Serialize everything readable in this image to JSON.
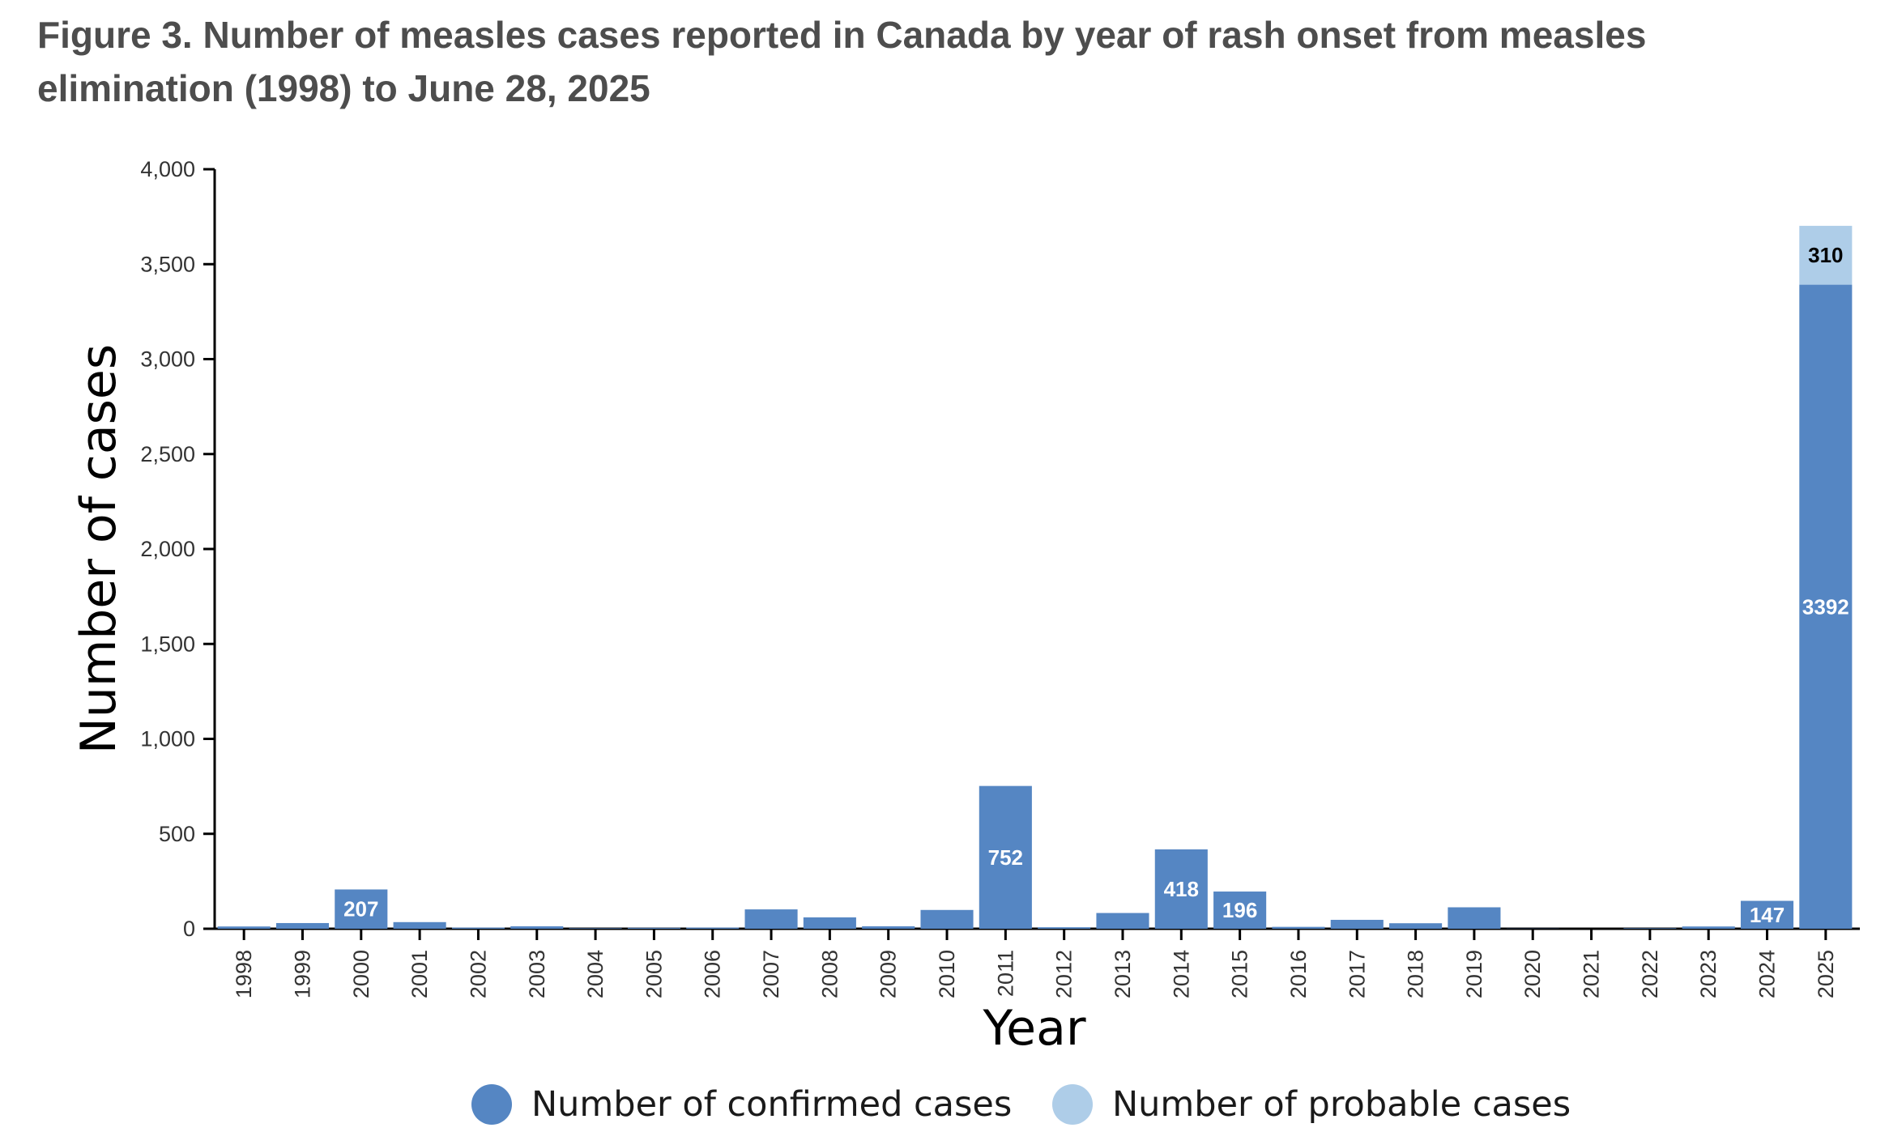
{
  "title": "Figure 3. Number of measles cases reported in Canada by year of rash onset from measles elimination (1998) to June 28, 2025",
  "chart_data": {
    "type": "bar",
    "stacked": true,
    "title": "Figure 3. Number of measles cases reported in Canada by year of rash onset from measles elimination (1998) to June 28, 2025",
    "xlabel": "Year",
    "ylabel": "Number of cases",
    "ylim": [
      0,
      4000
    ],
    "yticks": [
      0,
      500,
      1000,
      1500,
      2000,
      2500,
      3000,
      3500,
      4000
    ],
    "ytick_labels": [
      "0",
      "500",
      "1,000",
      "1,500",
      "2,000",
      "2,500",
      "3,000",
      "3,500",
      "4,000"
    ],
    "categories": [
      "1998",
      "1999",
      "2000",
      "2001",
      "2002",
      "2003",
      "2004",
      "2005",
      "2006",
      "2007",
      "2008",
      "2009",
      "2010",
      "2011",
      "2012",
      "2013",
      "2014",
      "2015",
      "2016",
      "2017",
      "2018",
      "2019",
      "2020",
      "2021",
      "2022",
      "2023",
      "2024",
      "2025"
    ],
    "series": [
      {
        "name": "Number of confirmed cases",
        "color": "#5586c3",
        "values": [
          12,
          30,
          207,
          35,
          6,
          13,
          3,
          5,
          6,
          102,
          60,
          13,
          99,
          752,
          8,
          83,
          418,
          196,
          10,
          47,
          29,
          113,
          1,
          0,
          3,
          12,
          147,
          3392
        ]
      },
      {
        "name": "Number of probable cases",
        "color": "#aecde8",
        "values": [
          0,
          0,
          0,
          0,
          0,
          0,
          0,
          0,
          0,
          0,
          0,
          0,
          0,
          0,
          0,
          0,
          0,
          0,
          0,
          0,
          0,
          0,
          0,
          0,
          0,
          0,
          0,
          310
        ]
      }
    ],
    "labeled_bars": {
      "confirmed": [
        "2000",
        "2011",
        "2014",
        "2015",
        "2024",
        "2025"
      ],
      "probable": [
        "2025"
      ]
    },
    "legend_position": "bottom",
    "grid": false
  }
}
